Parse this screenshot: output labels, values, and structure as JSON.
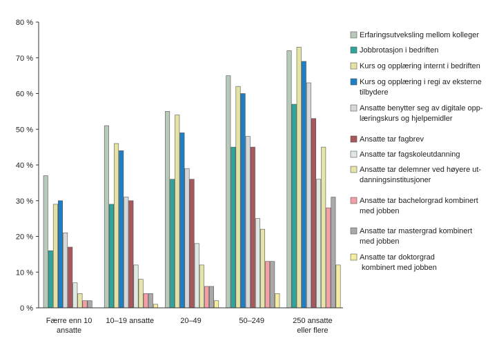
{
  "chart_data": {
    "type": "bar",
    "categories": [
      [
        "Færre enn 10",
        "ansatte"
      ],
      [
        "10–19 ansatte"
      ],
      [
        "20–49"
      ],
      [
        "50–249"
      ],
      [
        "250 ansatte",
        "eller flere"
      ]
    ],
    "y_ticks": [
      "0 %",
      "10 %",
      "20 %",
      "30 %",
      "40 %",
      "50 %",
      "60 %",
      "70 %",
      "80 %"
    ],
    "ylim": [
      0,
      80
    ],
    "grid": false,
    "legend_position": "right",
    "series": [
      {
        "name": [
          "Erfaringsutveksling mellom kolleger"
        ],
        "color": "#b7c9b9",
        "values": [
          37,
          51,
          55,
          65,
          72
        ]
      },
      {
        "name": [
          "Jobbrotasjon i bedriften"
        ],
        "color": "#2ea59a",
        "values": [
          16,
          29,
          36,
          45,
          57
        ]
      },
      {
        "name": [
          "Kurs og opplæring internt i bedriften"
        ],
        "color": "#e5e3a4",
        "values": [
          29,
          46,
          54,
          62,
          73
        ]
      },
      {
        "name": [
          "Kurs og opplæring i regi av eksterne",
          "tilbydere"
        ],
        "color": "#1e7fc4",
        "values": [
          30,
          44,
          49,
          60,
          69
        ]
      },
      {
        "name": [
          "Ansatte benytter seg av digitale opp-",
          "læringskurs og hjelpemidler"
        ],
        "color": "#d6d7d9",
        "values": [
          21,
          31,
          39,
          48,
          63
        ]
      },
      {
        "name": [
          "Ansatte tar fagbrev"
        ],
        "color": "#a8575a",
        "values": [
          17,
          30,
          36,
          45,
          53
        ]
      },
      {
        "name": [
          "Ansatte tar fagskoleutdanning"
        ],
        "color": "#dfe9e2",
        "values": [
          7,
          12,
          18,
          25,
          36
        ]
      },
      {
        "name": [
          "Ansatte tar delemner ved høyere ut-",
          "danningsinstitusjoner"
        ],
        "color": "#e6e4a8",
        "values": [
          4,
          8,
          12,
          22,
          45
        ]
      },
      {
        "name": [
          "Ansatte tar bachelorgrad kombinert",
          "med jobben"
        ],
        "color": "#f2a0a5",
        "values": [
          2,
          4,
          6,
          13,
          28
        ]
      },
      {
        "name": [
          "Ansatte tar mastergrad kombinert",
          "med jobben"
        ],
        "color": "#a9a9ab",
        "values": [
          2,
          4,
          6,
          13,
          31
        ]
      },
      {
        "name": [
          "Ansatte tar doktorgrad",
          " kombinert med jobben"
        ],
        "color": "#f4ec9e",
        "values": [
          0,
          1,
          2,
          4,
          12
        ]
      }
    ]
  }
}
